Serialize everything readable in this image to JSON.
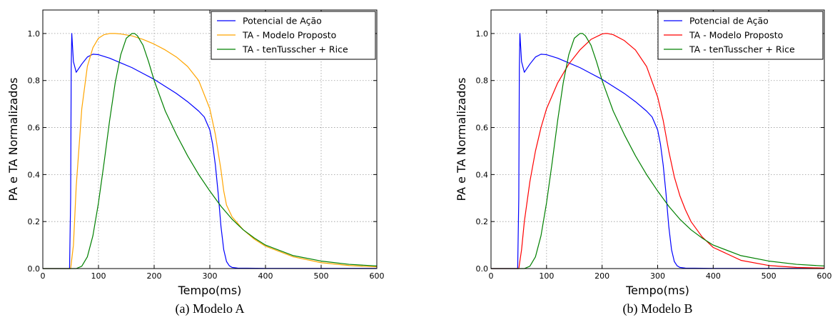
{
  "chart_data": [
    {
      "type": "line",
      "caption": "(a) Modelo A",
      "xlabel": "Tempo(ms)",
      "ylabel": "PA e TA Normalizados",
      "xlim": [
        0,
        600
      ],
      "ylim": [
        0,
        1.1
      ],
      "xticks": [
        "0",
        "100",
        "200",
        "300",
        "400",
        "500",
        "600"
      ],
      "yticks": [
        "0.0",
        "0.2",
        "0.4",
        "0.6",
        "0.8",
        "1.0"
      ],
      "grid": true,
      "legend_position": "top-right",
      "series": [
        {
          "name": "Potencial de Ação",
          "color": "#0000ff",
          "x": [
            0,
            48,
            50,
            51,
            52,
            55,
            60,
            70,
            80,
            90,
            100,
            120,
            140,
            160,
            180,
            200,
            220,
            240,
            260,
            280,
            290,
            300,
            305,
            310,
            315,
            320,
            325,
            330,
            335,
            340,
            350,
            400,
            500,
            600
          ],
          "y": [
            0,
            0,
            0.3,
            0.85,
            1.0,
            0.88,
            0.835,
            0.87,
            0.9,
            0.912,
            0.91,
            0.895,
            0.875,
            0.855,
            0.83,
            0.805,
            0.775,
            0.745,
            0.71,
            0.67,
            0.645,
            0.59,
            0.53,
            0.44,
            0.32,
            0.18,
            0.08,
            0.03,
            0.012,
            0.005,
            0.002,
            0.001,
            0.001,
            0.001
          ]
        },
        {
          "name": "TA - Modelo Proposto",
          "color": "#ffa500",
          "x": [
            0,
            50,
            55,
            60,
            70,
            80,
            90,
            100,
            110,
            120,
            130,
            140,
            160,
            180,
            200,
            220,
            240,
            260,
            280,
            300,
            310,
            320,
            325,
            330,
            340,
            360,
            380,
            400,
            450,
            500,
            550,
            600
          ],
          "y": [
            0,
            0,
            0.1,
            0.35,
            0.68,
            0.86,
            0.94,
            0.98,
            0.995,
            1.0,
            1.0,
            0.998,
            0.99,
            0.975,
            0.955,
            0.93,
            0.9,
            0.86,
            0.8,
            0.68,
            0.57,
            0.42,
            0.33,
            0.27,
            0.22,
            0.165,
            0.125,
            0.095,
            0.05,
            0.025,
            0.013,
            0.007
          ]
        },
        {
          "name": "TA - tenTusscher + Rice",
          "color": "#008000",
          "x": [
            0,
            60,
            70,
            80,
            90,
            100,
            110,
            120,
            130,
            140,
            150,
            160,
            165,
            170,
            180,
            190,
            200,
            220,
            240,
            260,
            280,
            300,
            320,
            340,
            360,
            380,
            400,
            450,
            500,
            550,
            600
          ],
          "y": [
            0,
            0,
            0.01,
            0.05,
            0.14,
            0.28,
            0.45,
            0.63,
            0.79,
            0.91,
            0.98,
            1.0,
            1.0,
            0.99,
            0.95,
            0.88,
            0.8,
            0.67,
            0.57,
            0.48,
            0.4,
            0.33,
            0.265,
            0.21,
            0.165,
            0.13,
            0.1,
            0.055,
            0.032,
            0.018,
            0.011
          ]
        }
      ]
    },
    {
      "type": "line",
      "caption": "(b) Modelo B",
      "xlabel": "Tempo(ms)",
      "ylabel": "PA e TA Normalizados",
      "xlim": [
        0,
        600
      ],
      "ylim": [
        0,
        1.1
      ],
      "xticks": [
        "0",
        "100",
        "200",
        "300",
        "400",
        "500",
        "600"
      ],
      "yticks": [
        "0.0",
        "0.2",
        "0.4",
        "0.6",
        "0.8",
        "1.0"
      ],
      "grid": true,
      "legend_position": "top-right",
      "series": [
        {
          "name": "Potencial de Ação",
          "color": "#0000ff",
          "x": [
            0,
            48,
            50,
            51,
            52,
            55,
            60,
            70,
            80,
            90,
            100,
            120,
            140,
            160,
            180,
            200,
            220,
            240,
            260,
            280,
            290,
            300,
            305,
            310,
            315,
            320,
            325,
            330,
            335,
            340,
            350,
            400,
            500,
            600
          ],
          "y": [
            0,
            0,
            0.3,
            0.85,
            1.0,
            0.88,
            0.835,
            0.87,
            0.9,
            0.912,
            0.91,
            0.895,
            0.875,
            0.855,
            0.83,
            0.805,
            0.775,
            0.745,
            0.71,
            0.67,
            0.645,
            0.59,
            0.53,
            0.44,
            0.32,
            0.18,
            0.08,
            0.03,
            0.012,
            0.005,
            0.002,
            0.001,
            0.001,
            0.001
          ]
        },
        {
          "name": "TA - Modelo Proposto",
          "color": "#ff0000",
          "x": [
            0,
            50,
            55,
            60,
            70,
            80,
            90,
            100,
            120,
            140,
            160,
            180,
            200,
            205,
            210,
            220,
            240,
            260,
            280,
            300,
            310,
            320,
            330,
            340,
            350,
            360,
            380,
            400,
            450,
            500,
            550,
            600
          ],
          "y": [
            0,
            0,
            0.08,
            0.2,
            0.37,
            0.5,
            0.6,
            0.68,
            0.79,
            0.87,
            0.93,
            0.975,
            0.998,
            1.0,
            1.0,
            0.995,
            0.97,
            0.93,
            0.86,
            0.73,
            0.63,
            0.5,
            0.39,
            0.31,
            0.25,
            0.2,
            0.135,
            0.09,
            0.035,
            0.013,
            0.005,
            0.002
          ]
        },
        {
          "name": "TA - tenTusscher + Rice",
          "color": "#008000",
          "x": [
            0,
            60,
            70,
            80,
            90,
            100,
            110,
            120,
            130,
            140,
            150,
            160,
            165,
            170,
            180,
            190,
            200,
            220,
            240,
            260,
            280,
            300,
            320,
            340,
            360,
            380,
            400,
            450,
            500,
            550,
            600
          ],
          "y": [
            0,
            0,
            0.01,
            0.05,
            0.14,
            0.28,
            0.45,
            0.63,
            0.79,
            0.91,
            0.98,
            1.0,
            1.0,
            0.99,
            0.95,
            0.88,
            0.8,
            0.67,
            0.57,
            0.48,
            0.4,
            0.33,
            0.265,
            0.21,
            0.165,
            0.13,
            0.1,
            0.055,
            0.032,
            0.018,
            0.011
          ]
        }
      ]
    }
  ]
}
